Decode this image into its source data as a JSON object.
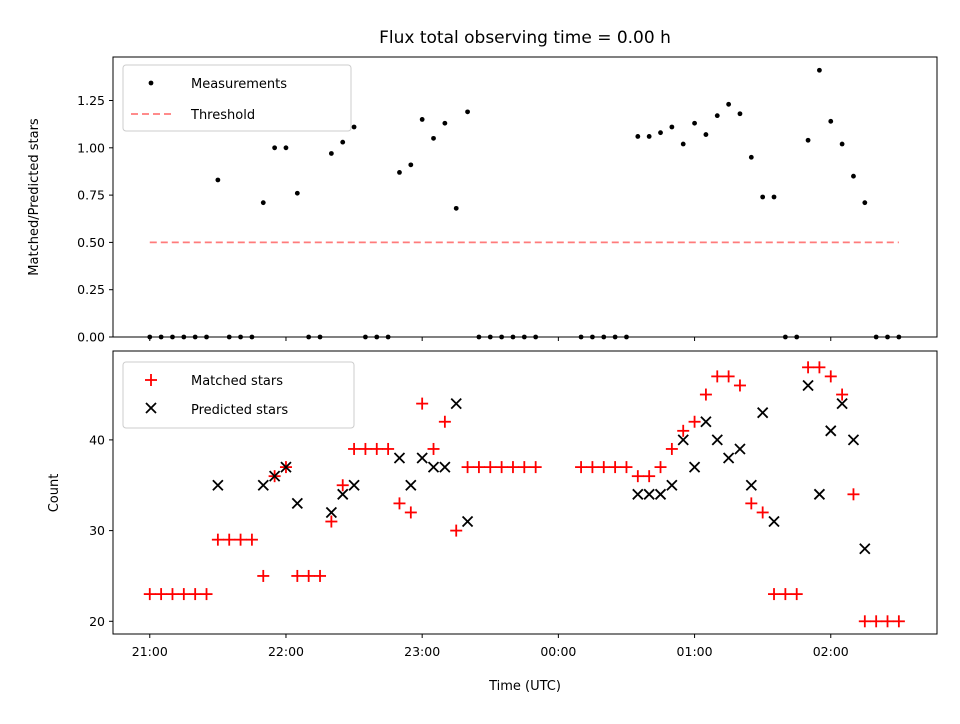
{
  "chart_data": [
    {
      "type": "scatter",
      "title": "Flux total observing time = 0.00 h",
      "ylabel": "Matched/Predicted stars",
      "xlabel": "",
      "ylim": [
        0,
        1.48
      ],
      "yticks": [
        "0.00",
        "0.25",
        "0.50",
        "0.75",
        "1.00",
        "1.25"
      ],
      "ytick_values": [
        0,
        0.25,
        0.5,
        0.75,
        1.0,
        1.25
      ],
      "xlim_hours": [
        20.73,
        26.78
      ],
      "legend_position": "top-left",
      "series": [
        {
          "name": "Measurements",
          "marker": "dot",
          "color": "#000000",
          "x": [
            "21:00",
            "21:05",
            "21:10",
            "21:15",
            "21:20",
            "21:25",
            "21:30",
            "21:35",
            "21:40",
            "21:45",
            "21:50",
            "21:55",
            "22:00",
            "22:05",
            "22:10",
            "22:15",
            "22:20",
            "22:25",
            "22:30",
            "22:35",
            "22:40",
            "22:45",
            "22:50",
            "22:55",
            "23:00",
            "23:05",
            "23:10",
            "23:15",
            "23:20",
            "23:25",
            "23:30",
            "23:35",
            "23:40",
            "23:45",
            "23:50",
            "24:10",
            "24:15",
            "24:20",
            "24:25",
            "24:30",
            "24:35",
            "24:40",
            "24:45",
            "24:50",
            "24:55",
            "25:00",
            "25:05",
            "25:10",
            "25:15",
            "25:20",
            "25:25",
            "25:30",
            "25:35",
            "25:40",
            "25:45",
            "25:50",
            "25:55",
            "26:00",
            "26:05",
            "26:10",
            "26:15",
            "26:20",
            "26:25",
            "26:30"
          ],
          "y": [
            0,
            0,
            0,
            0,
            0,
            0,
            0.83,
            0,
            0,
            0,
            0.71,
            1.0,
            1.0,
            0.76,
            0,
            0,
            0.97,
            1.03,
            1.11,
            0,
            0,
            0,
            0.87,
            0.91,
            1.15,
            1.05,
            1.13,
            0.68,
            1.19,
            0,
            0,
            0,
            0,
            0,
            0,
            0,
            0,
            0,
            0,
            0,
            1.06,
            1.06,
            1.08,
            1.11,
            1.02,
            1.13,
            1.07,
            1.17,
            1.23,
            1.18,
            0.95,
            0.74,
            0.74,
            0,
            0,
            1.04,
            1.41,
            1.14,
            1.02,
            0.85,
            0.71,
            0,
            0,
            0
          ]
        },
        {
          "name": "Threshold",
          "marker": "dashed-line",
          "color": "#ff7b7b",
          "x": [
            "21:00",
            "26:30"
          ],
          "y": [
            0.5,
            0.5
          ]
        }
      ]
    },
    {
      "type": "scatter",
      "ylabel": "Count",
      "xlabel": "Time (UTC)",
      "ylim": [
        18.6,
        49.8
      ],
      "yticks": [
        "20",
        "30",
        "40"
      ],
      "ytick_values": [
        20,
        30,
        40
      ],
      "xticks": [
        "21:00",
        "22:00",
        "23:00",
        "00:00",
        "01:00",
        "02:00"
      ],
      "xtick_hours": [
        21,
        22,
        23,
        24,
        25,
        26
      ],
      "xlim_hours": [
        20.73,
        26.78
      ],
      "legend_position": "top-left",
      "series": [
        {
          "name": "Matched stars",
          "marker": "plus",
          "color": "#ff0000",
          "x": [
            "21:00",
            "21:05",
            "21:10",
            "21:15",
            "21:20",
            "21:25",
            "21:30",
            "21:35",
            "21:40",
            "21:45",
            "21:50",
            "21:55",
            "22:00",
            "22:05",
            "22:10",
            "22:15",
            "22:20",
            "22:25",
            "22:30",
            "22:35",
            "22:40",
            "22:45",
            "22:50",
            "22:55",
            "23:00",
            "23:05",
            "23:10",
            "23:15",
            "23:20",
            "23:25",
            "23:30",
            "23:35",
            "23:40",
            "23:45",
            "23:50",
            "24:10",
            "24:15",
            "24:20",
            "24:25",
            "24:30",
            "24:35",
            "24:40",
            "24:45",
            "24:50",
            "24:55",
            "25:00",
            "25:05",
            "25:10",
            "25:15",
            "25:20",
            "25:25",
            "25:30",
            "25:35",
            "25:40",
            "25:45",
            "25:50",
            "25:55",
            "26:00",
            "26:05",
            "26:10",
            "26:15",
            "26:20",
            "26:25",
            "26:30"
          ],
          "y": [
            23,
            23,
            23,
            23,
            23,
            23,
            29,
            29,
            29,
            29,
            25,
            36,
            37,
            25,
            25,
            25,
            31,
            35,
            39,
            39,
            39,
            39,
            33,
            32,
            44,
            39,
            42,
            30,
            37,
            37,
            37,
            37,
            37,
            37,
            37,
            37,
            37,
            37,
            37,
            37,
            36,
            36,
            37,
            39,
            41,
            42,
            45,
            47,
            47,
            46,
            33,
            32,
            23,
            23,
            23,
            48,
            48,
            47,
            45,
            34,
            20,
            20,
            20,
            20
          ]
        },
        {
          "name": "Predicted stars",
          "marker": "x",
          "color": "#000000",
          "x": [
            "21:30",
            "21:50",
            "21:55",
            "22:00",
            "22:05",
            "22:20",
            "22:25",
            "22:30",
            "22:50",
            "22:55",
            "23:00",
            "23:05",
            "23:10",
            "23:15",
            "23:20",
            "24:35",
            "24:40",
            "24:45",
            "24:50",
            "24:55",
            "25:00",
            "25:05",
            "25:10",
            "25:15",
            "25:20",
            "25:25",
            "25:30",
            "25:35",
            "25:50",
            "25:55",
            "26:00",
            "26:05",
            "26:10",
            "26:15"
          ],
          "y": [
            35,
            35,
            36,
            37,
            33,
            32,
            34,
            35,
            38,
            35,
            38,
            37,
            37,
            44,
            31,
            34,
            34,
            34,
            35,
            40,
            37,
            42,
            40,
            38,
            39,
            35,
            43,
            31,
            46,
            34,
            41,
            44,
            40,
            28
          ]
        }
      ]
    }
  ]
}
